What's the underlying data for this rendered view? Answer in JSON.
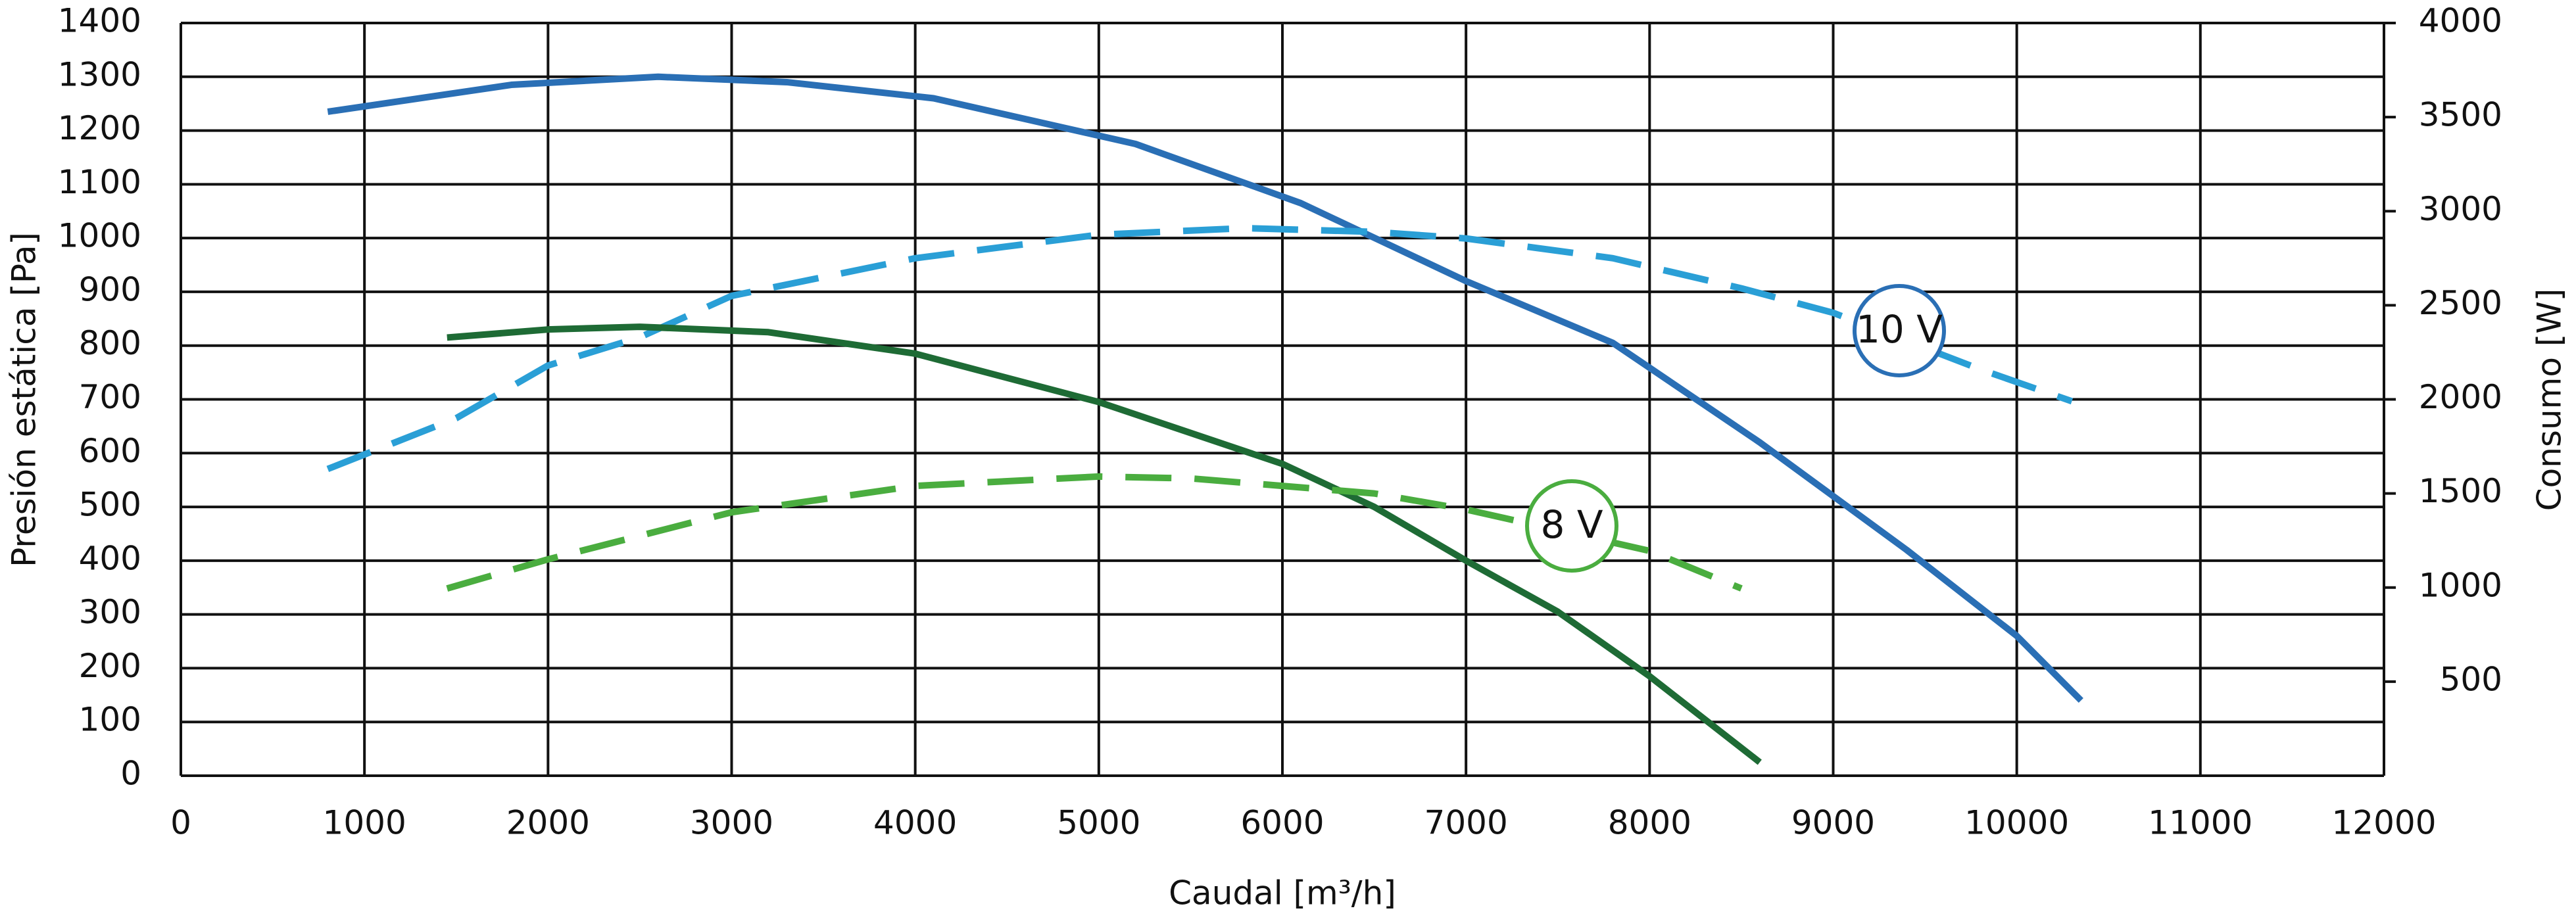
{
  "chart_data": {
    "type": "line",
    "xlabel": "Caudal [m³/h]",
    "ylabel": "Presión estática [Pa]",
    "y2label": "Consumo [W]",
    "xlim": [
      0,
      12000
    ],
    "xticks": [
      0,
      1000,
      2000,
      3000,
      4000,
      5000,
      6000,
      7000,
      8000,
      9000,
      10000,
      11000,
      12000
    ],
    "ylim": [
      0,
      1400
    ],
    "yticks": [
      0,
      100,
      200,
      300,
      400,
      500,
      600,
      700,
      800,
      900,
      1000,
      1100,
      1200,
      1300,
      1400
    ],
    "y2lim": [
      0,
      4000
    ],
    "y2ticks": [
      500,
      1000,
      1500,
      2000,
      2500,
      3000,
      3500,
      4000
    ],
    "grid": true,
    "annotations": [
      "10 V",
      "8 V"
    ],
    "series": [
      {
        "color": "#2a6fb5",
        "style": "solid",
        "x": [
          800,
          1800,
          2600,
          3300,
          4100,
          5200,
          6100,
          7000,
          7800,
          8600,
          9400,
          10000,
          10350
        ],
        "values": [
          1235,
          1285,
          1300,
          1290,
          1260,
          1175,
          1065,
          920,
          805,
          620,
          420,
          260,
          140
        ]
      },
      {
        "color": "#2a9fd6",
        "style": "dashed",
        "axis": "y2",
        "x": [
          800,
          1500,
          2000,
          2500,
          3000,
          4000,
          5000,
          5800,
          6500,
          7000,
          7800,
          8500,
          9000,
          9800,
          10300
        ],
        "values": [
          1630,
          1900,
          2180,
          2330,
          2550,
          2750,
          2875,
          2910,
          2890,
          2855,
          2750,
          2590,
          2460,
          2160,
          1990
        ]
      },
      {
        "color": "#1e6b35",
        "style": "solid",
        "x": [
          1450,
          2000,
          2500,
          3200,
          4000,
          5000,
          6000,
          6500,
          7000,
          7500,
          8000,
          8600
        ],
        "values": [
          815,
          830,
          835,
          825,
          785,
          695,
          580,
          500,
          400,
          305,
          185,
          25
        ]
      },
      {
        "color": "#4aad3f",
        "style": "dashed",
        "axis": "y2",
        "x": [
          1450,
          2000,
          3000,
          4000,
          5000,
          5500,
          6500,
          7000,
          8000,
          8500
        ],
        "values": [
          995,
          1150,
          1400,
          1540,
          1590,
          1580,
          1500,
          1415,
          1195,
          995
        ]
      }
    ]
  }
}
